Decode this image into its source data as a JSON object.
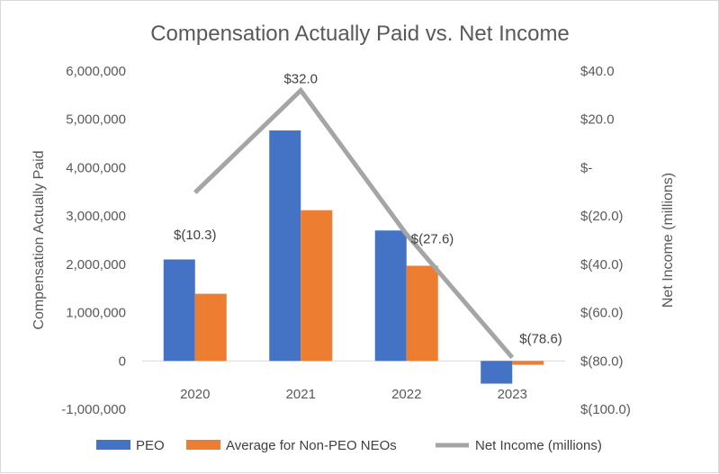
{
  "chart_data": {
    "type": "bar",
    "title": "Compensation Actually Paid vs. Net Income",
    "categories": [
      "2020",
      "2021",
      "2022",
      "2023"
    ],
    "ylabel": "Compensation Actually Paid",
    "y2label": "Net Income (millions)",
    "ylim": [
      -1000000,
      6000000
    ],
    "y2lim": [
      -100,
      40
    ],
    "y_ticks": [
      "6,000,000",
      "5,000,000",
      "4,000,000",
      "3,000,000",
      "2,000,000",
      "1,000,000",
      "0",
      "-1,000,000"
    ],
    "y2_ticks": [
      "$40.0",
      "$20.0",
      "$-",
      "$(20.0)",
      "$(40.0)",
      "$(60.0)",
      "$(80.0)",
      "$(100.0)"
    ],
    "series": [
      {
        "name": "PEO",
        "type": "bar",
        "axis": "left",
        "color": "#4472c4",
        "values": [
          2100000,
          4770000,
          2700000,
          -470000
        ]
      },
      {
        "name": "Average for Non-PEO NEOs",
        "type": "bar",
        "axis": "left",
        "color": "#ed7d31",
        "values": [
          1390000,
          3120000,
          1970000,
          -80000
        ]
      },
      {
        "name": "Net Income (millions)",
        "type": "line",
        "axis": "right",
        "color": "#a5a5a5",
        "values": [
          -10.3,
          32.0,
          -27.6,
          -78.6
        ],
        "labels": [
          "$(10.3)",
          "$32.0",
          "$(27.6)",
          "$(78.6)"
        ]
      }
    ],
    "legend_position": "bottom",
    "grid": false
  }
}
